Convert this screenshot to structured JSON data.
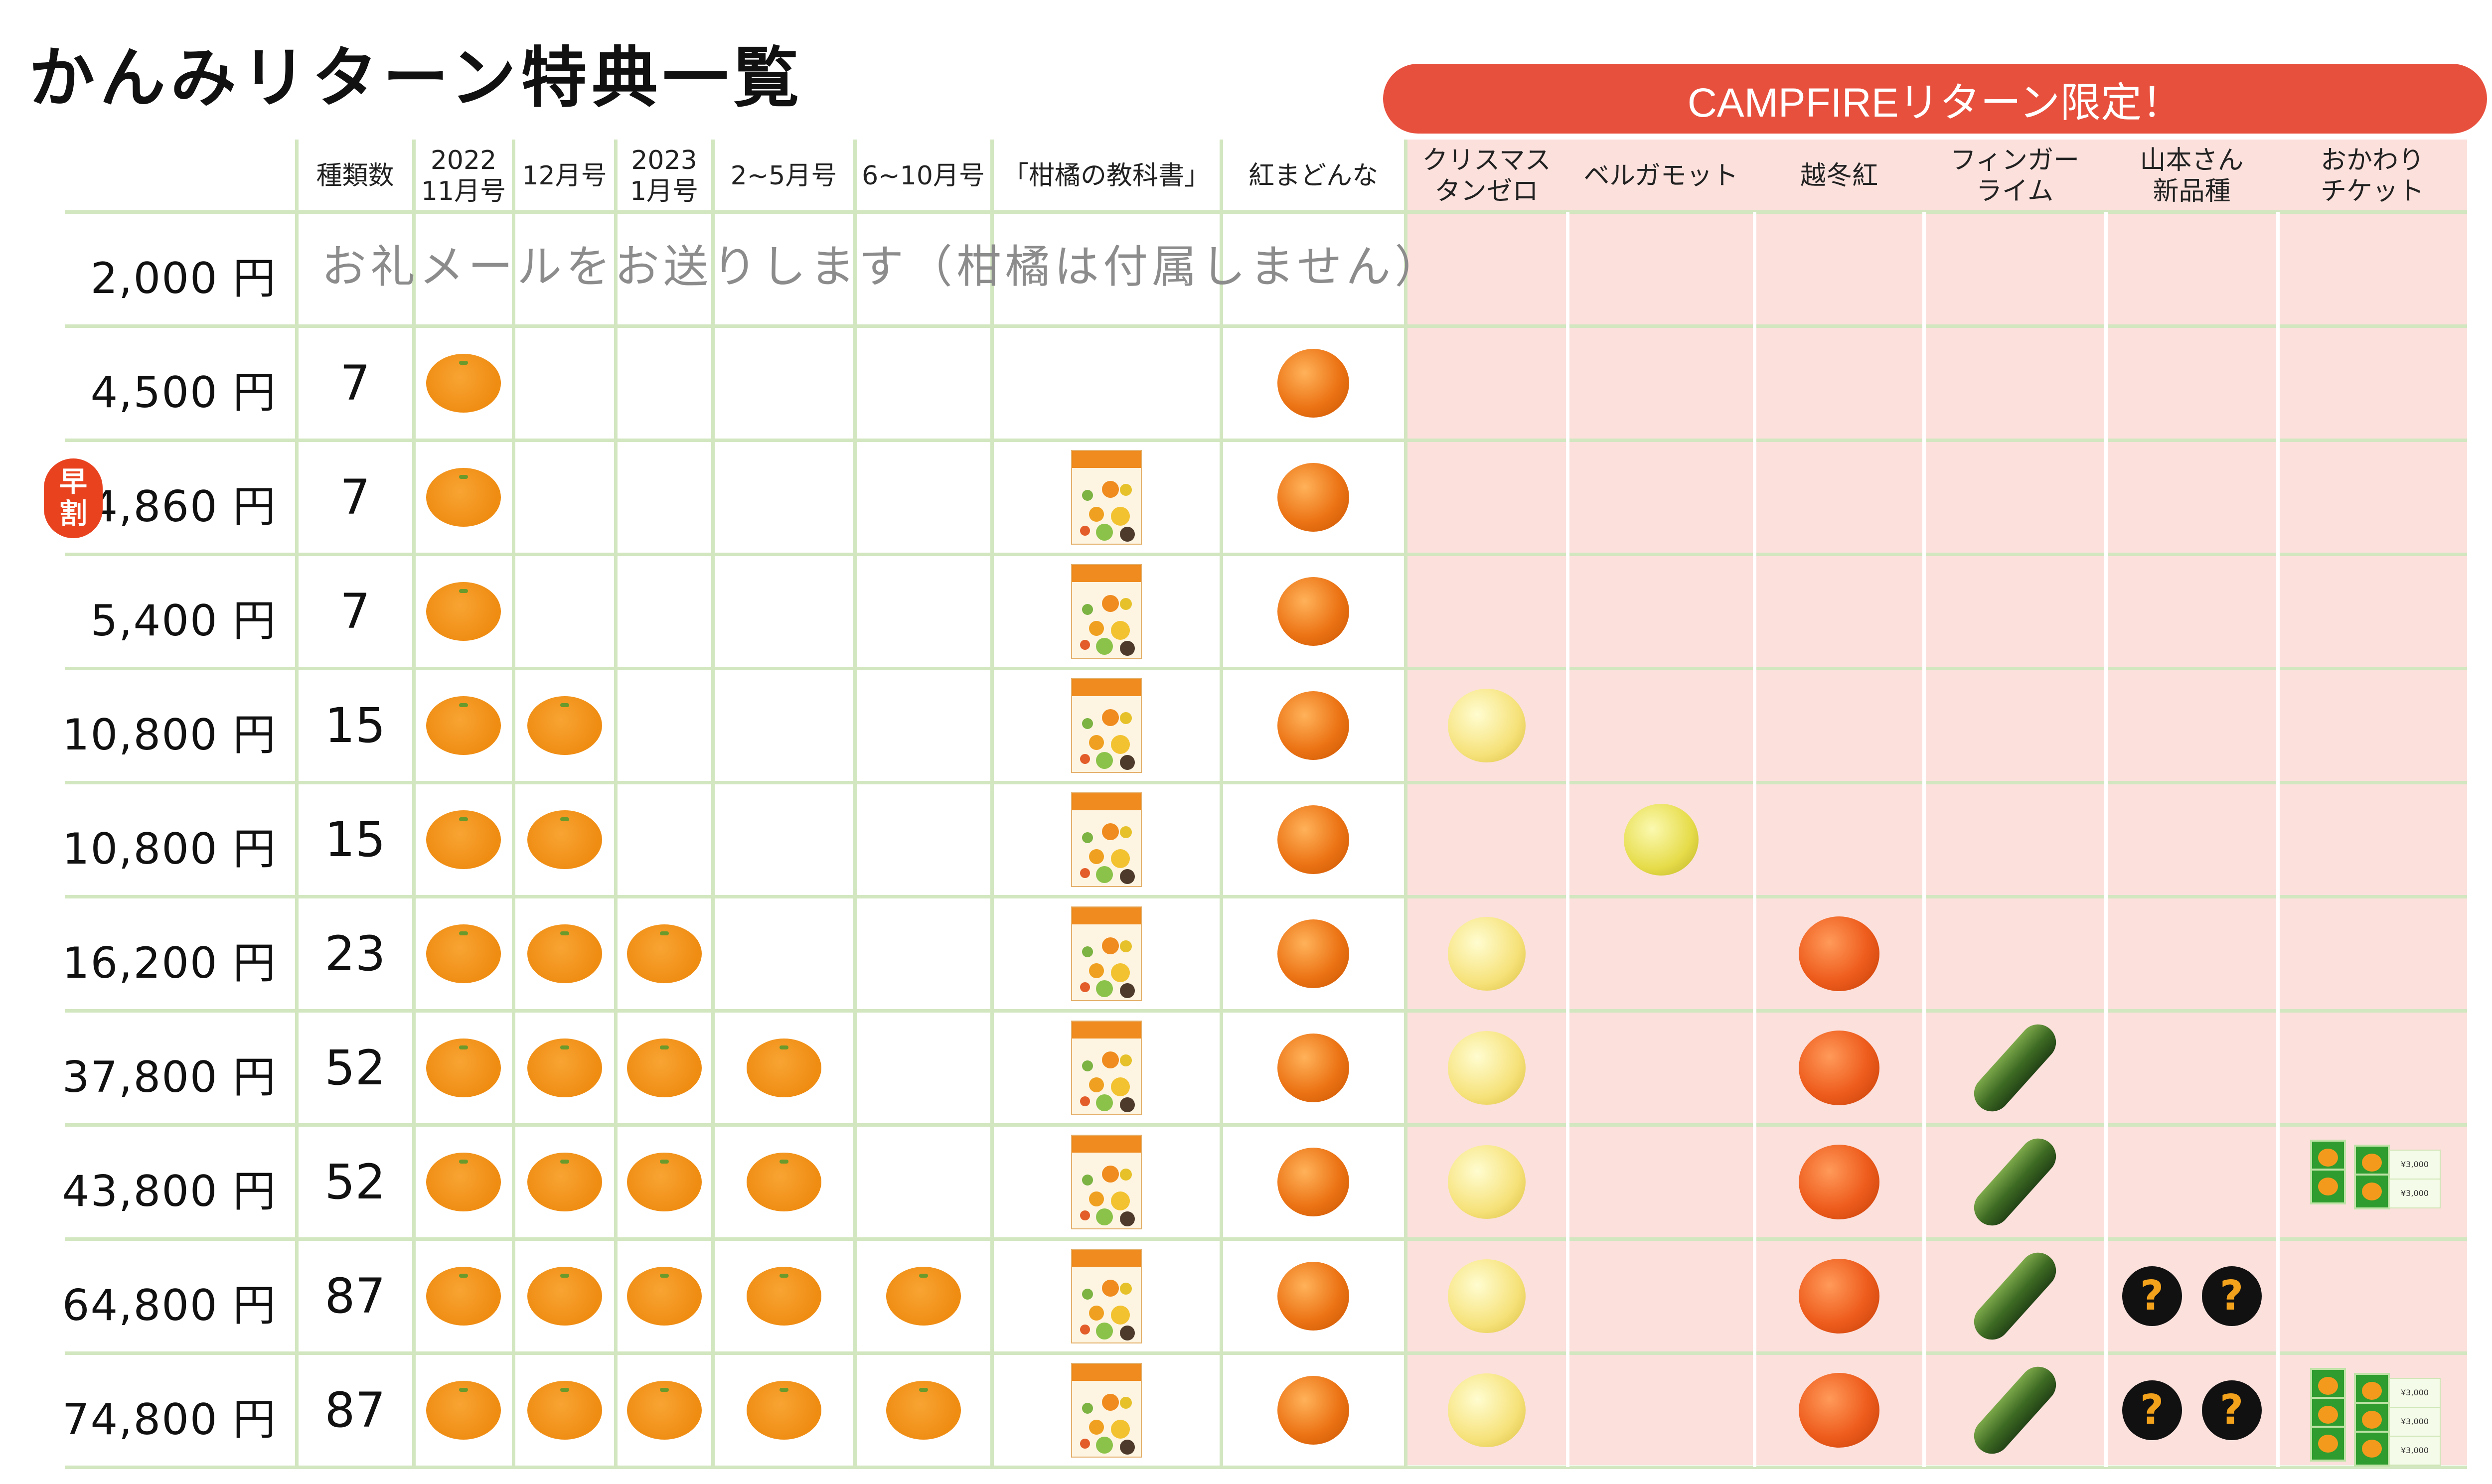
{
  "title": "かんみリターン特典一覧",
  "banner": "CAMPFIREリターン限定！",
  "headers": {
    "kinds": "種類数",
    "nov_line1": "2022",
    "nov_line2": "11月号",
    "dec": "12月号",
    "jan_line1": "2023",
    "jan_line2": "1月号",
    "feb_may": "2~5月号",
    "jun_oct": "6~10月号",
    "book": "「柑橘の教科書」",
    "benimadonna": "紅まどんな",
    "tangelo_line1": "クリスマス",
    "tangelo_line2": "タンゼロ",
    "bergamot": "ベルガモット",
    "etsutoubeni": "越冬紅",
    "fingerlime_line1": "フィンガー",
    "fingerlime_line2": "ライム",
    "yamamoto_line1": "山本さん",
    "yamamoto_line2": "新品種",
    "refill_line1": "おかわり",
    "refill_line2": "チケット"
  },
  "note": "お礼メールをお送りします（柑橘は付属しません）",
  "badge": {
    "line1": "早",
    "line2": "割"
  },
  "mystery_mark": "?",
  "ticket_label": "おかわり",
  "ticket_price": "¥3,000",
  "rows": [
    {
      "price": "2,000 円",
      "kinds": ""
    },
    {
      "price": "4,500 円",
      "kinds": "7"
    },
    {
      "price": "4,860 円",
      "kinds": "7"
    },
    {
      "price": "5,400 円",
      "kinds": "7"
    },
    {
      "price": "10,800 円",
      "kinds": "15"
    },
    {
      "price": "10,800 円",
      "kinds": "15"
    },
    {
      "price": "16,200 円",
      "kinds": "23"
    },
    {
      "price": "37,800 円",
      "kinds": "52"
    },
    {
      "price": "43,800 円",
      "kinds": "52"
    },
    {
      "price": "64,800 円",
      "kinds": "87"
    },
    {
      "price": "74,800 円",
      "kinds": "87"
    }
  ],
  "colors": {
    "banner": "#e8503e",
    "pink_area": "#fbe0dc",
    "grid": "#d2e6c0",
    "badge": "#e8421f",
    "mikan": "#ef8c12"
  }
}
